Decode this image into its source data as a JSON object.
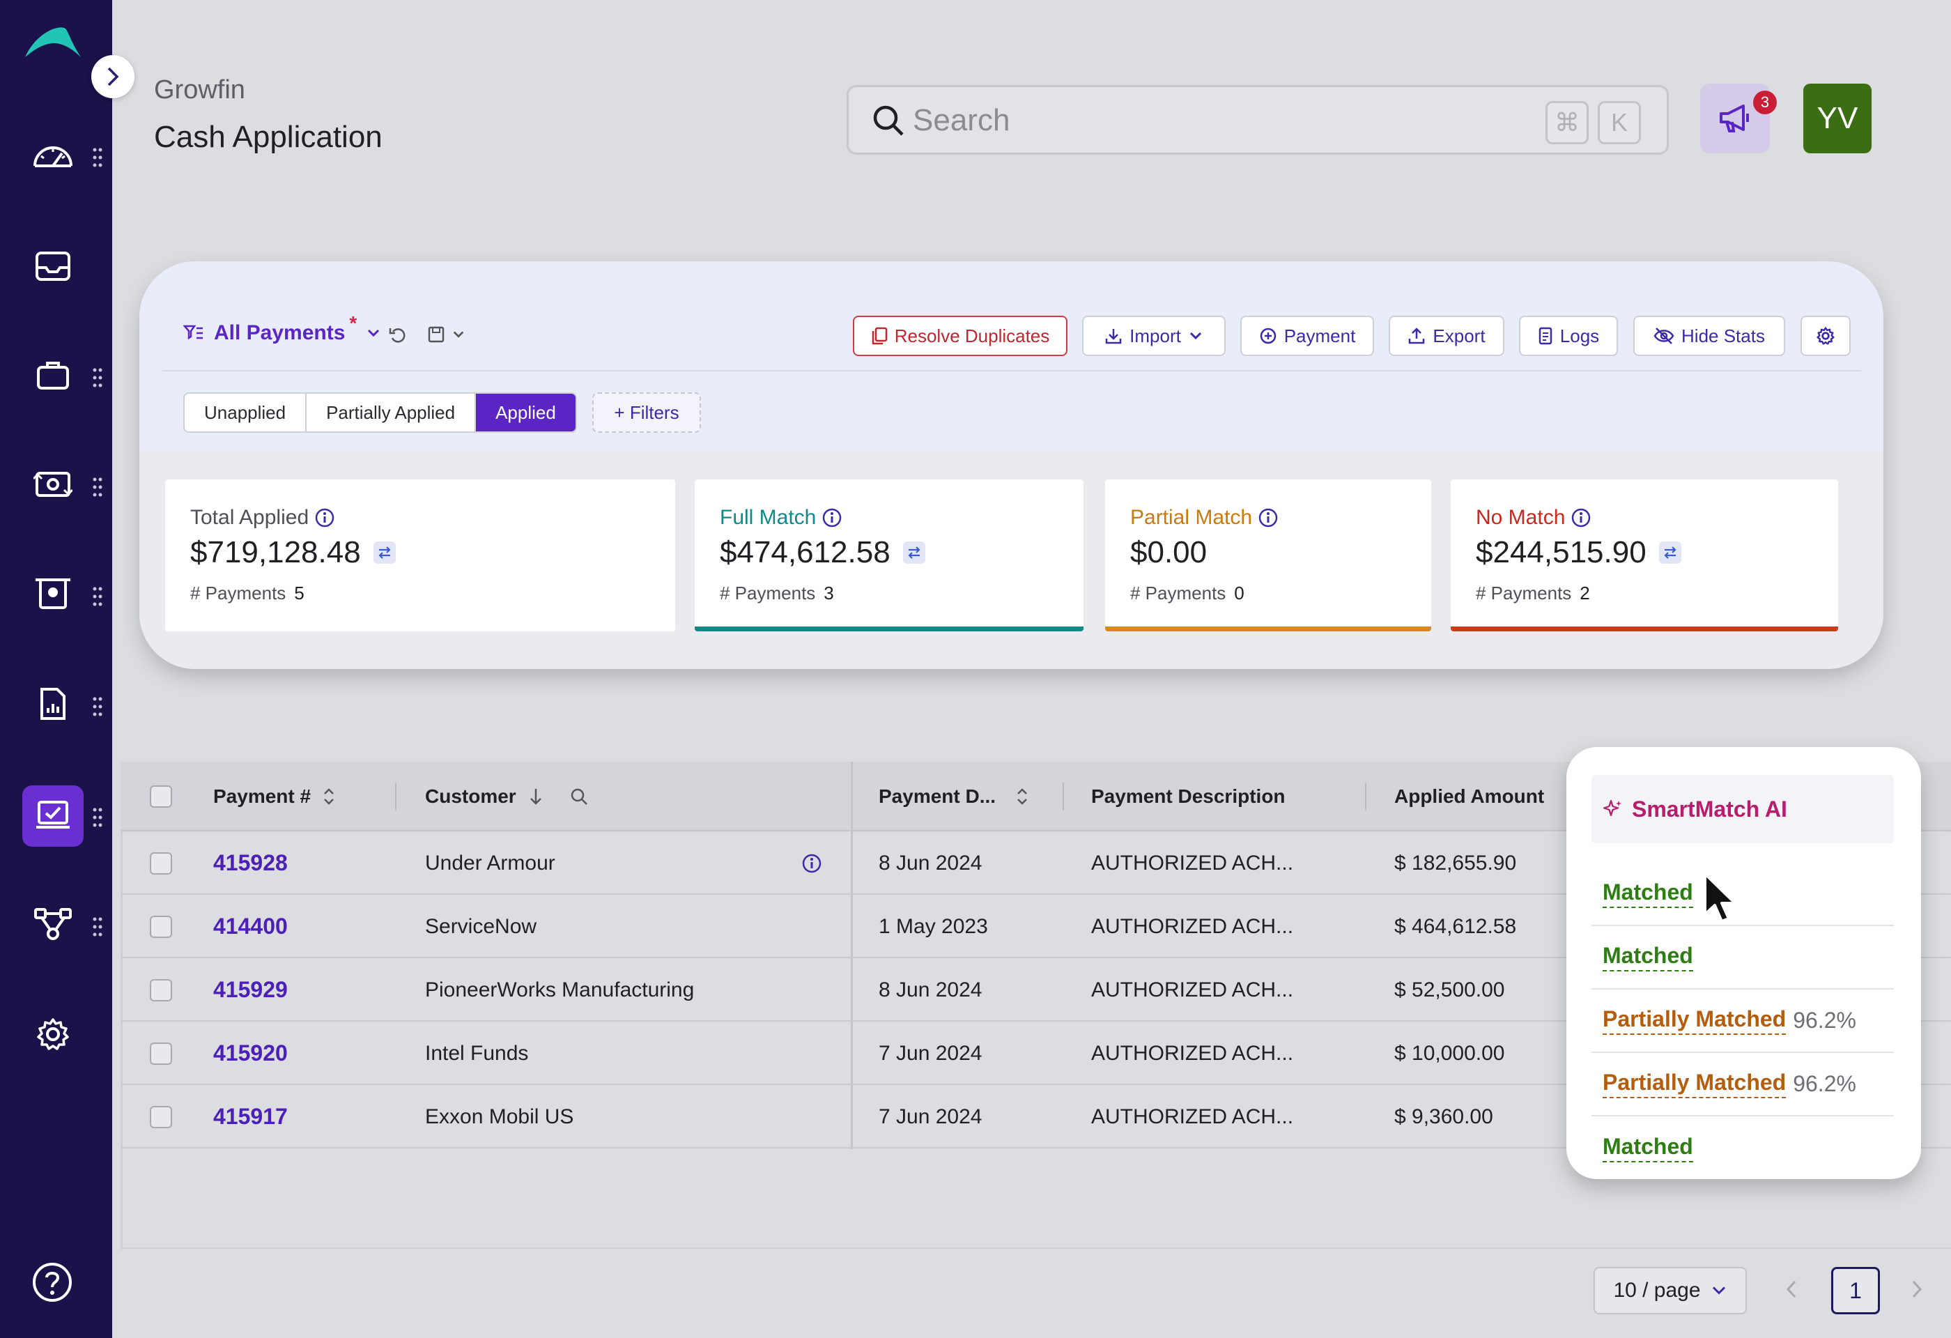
{
  "header": {
    "brand": "Growfin",
    "title": "Cash Application",
    "search": {
      "placeholder": "Search",
      "shortcut_keys": [
        "⌘",
        "K"
      ]
    },
    "notifications": {
      "count": "3"
    },
    "avatar_initials": "YV"
  },
  "toolbar": {
    "view_name": "All Payments",
    "view_modified_marker": "*",
    "buttons": {
      "resolve_duplicates": "Resolve Duplicates",
      "import": "Import",
      "payment": "Payment",
      "export": "Export",
      "logs": "Logs",
      "hide_stats": "Hide Stats"
    }
  },
  "segments": {
    "items": [
      "Unapplied",
      "Partially Applied",
      "Applied"
    ],
    "selected": "Applied",
    "filters_label": "+ Filters"
  },
  "stats": {
    "count_label": "# Payments",
    "cards": [
      {
        "label": "Total Applied",
        "value": "$719,128.48",
        "count": "5",
        "label_color": "#4e4e56",
        "bar_color": ""
      },
      {
        "label": "Full Match",
        "value": "$474,612.58",
        "count": "3",
        "label_color": "#0f8a8a",
        "bar_color": "#0f8a8a"
      },
      {
        "label": "Partial Match",
        "value": "$0.00",
        "count": "0",
        "label_color": "#c97a0a",
        "bar_color": "#d98a12"
      },
      {
        "label": "No Match",
        "value": "$244,515.90",
        "count": "2",
        "label_color": "#c8281e",
        "bar_color": "#d03a1c"
      }
    ]
  },
  "table": {
    "columns": [
      "Payment #",
      "Customer",
      "Payment D...",
      "Payment Description",
      "Applied Amount"
    ],
    "rows": [
      {
        "payment_no": "415928",
        "customer": "Under Armour",
        "date": "8 Jun 2024",
        "description": "AUTHORIZED ACH...",
        "amount": "$ 182,655.90",
        "status": "Matched",
        "pct": ""
      },
      {
        "payment_no": "414400",
        "customer": "ServiceNow",
        "date": "1 May 2023",
        "description": "AUTHORIZED ACH...",
        "amount": "$ 464,612.58",
        "status": "Matched",
        "pct": ""
      },
      {
        "payment_no": "415929",
        "customer": "PioneerWorks Manufacturing",
        "date": "8 Jun 2024",
        "description": "AUTHORIZED ACH...",
        "amount": "$ 52,500.00",
        "status": "Partially Matched",
        "pct": "96.2%"
      },
      {
        "payment_no": "415920",
        "customer": "Intel Funds",
        "date": "7 Jun 2024",
        "description": "AUTHORIZED ACH...",
        "amount": "$ 10,000.00",
        "status": "Partially Matched",
        "pct": "96.2%"
      },
      {
        "payment_no": "415917",
        "customer": "Exxon Mobil US",
        "date": "7 Jun 2024",
        "description": "AUTHORIZED ACH...",
        "amount": "$ 9,360.00",
        "status": "Matched",
        "pct": ""
      }
    ]
  },
  "smartmatch": {
    "title": "SmartMatch AI"
  },
  "pagination": {
    "page_size": "10 / page",
    "current_page": "1"
  },
  "colors": {
    "sidebar": "#1a1248",
    "accent": "#5a25c4",
    "matched": "#2e7d12",
    "partial": "#b55d0c"
  }
}
